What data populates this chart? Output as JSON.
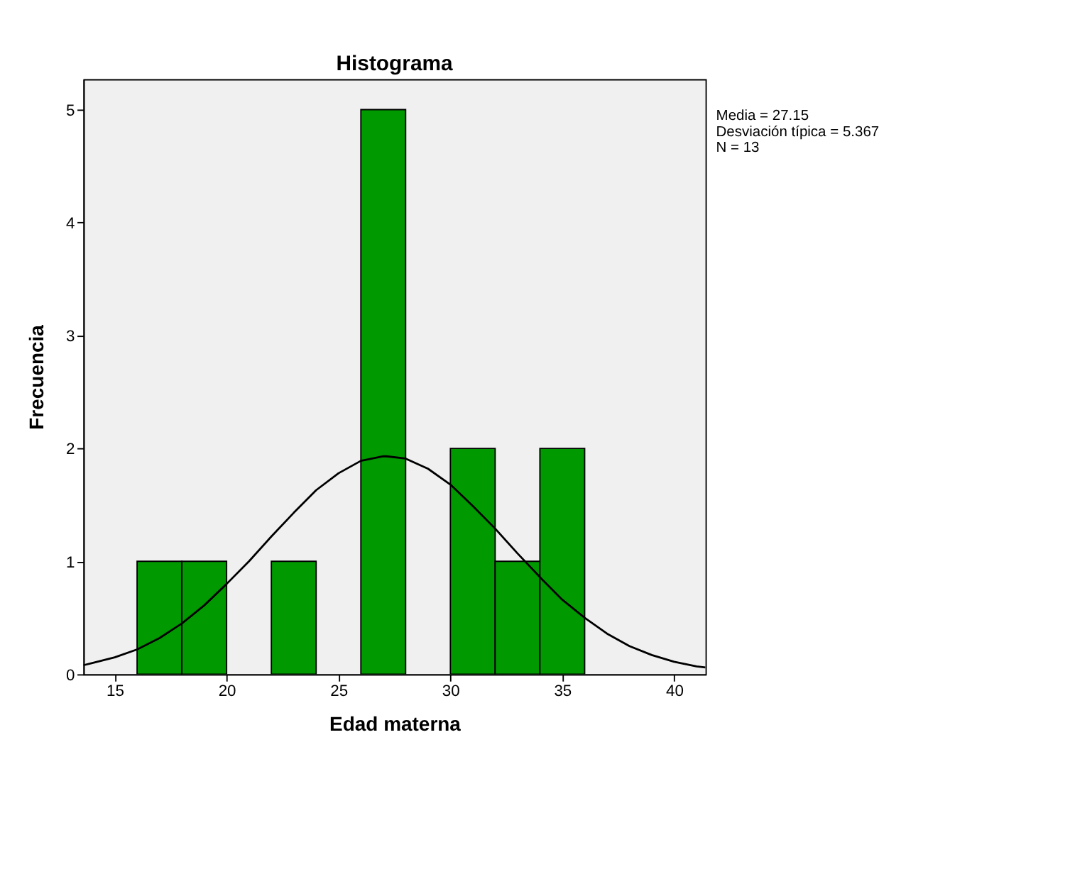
{
  "chart_data": {
    "type": "histogram",
    "title": "Histograma",
    "xlabel": "Edad materna",
    "ylabel": "Frecuencia",
    "bins": [
      16,
      18,
      20,
      22,
      24,
      26,
      28,
      30,
      32,
      34,
      36
    ],
    "values": [
      1,
      1,
      0,
      1,
      0,
      5,
      0,
      2,
      1,
      2
    ],
    "color": "#009900",
    "series": [
      {
        "type": "line",
        "color": "#000000",
        "x": [
          13.6,
          14,
          15,
          16,
          17,
          18,
          19,
          20,
          21,
          22,
          23,
          24,
          25,
          26,
          27,
          27.15,
          28,
          29,
          30,
          31,
          32,
          33,
          34,
          35,
          36,
          37,
          38,
          39,
          40,
          41,
          41.4
        ],
        "values": [
          0.08,
          0.1,
          0.15,
          0.22,
          0.32,
          0.45,
          0.61,
          0.8,
          1.0,
          1.22,
          1.43,
          1.63,
          1.78,
          1.89,
          1.93,
          1.93,
          1.91,
          1.82,
          1.68,
          1.49,
          1.29,
          1.07,
          0.86,
          0.66,
          0.5,
          0.36,
          0.25,
          0.17,
          0.11,
          0.07,
          0.06
        ]
      }
    ],
    "xlim": [
      13.6,
      41.4
    ],
    "xticks": [
      15,
      20,
      25,
      30,
      35,
      40
    ],
    "ylim": [
      0,
      5.27
    ],
    "yticks": [
      0,
      1,
      2,
      3,
      4,
      5
    ],
    "grid": false,
    "annotations": [
      "Media = 27.15",
      "Desviación típica = 5.367",
      "N = 13"
    ]
  }
}
